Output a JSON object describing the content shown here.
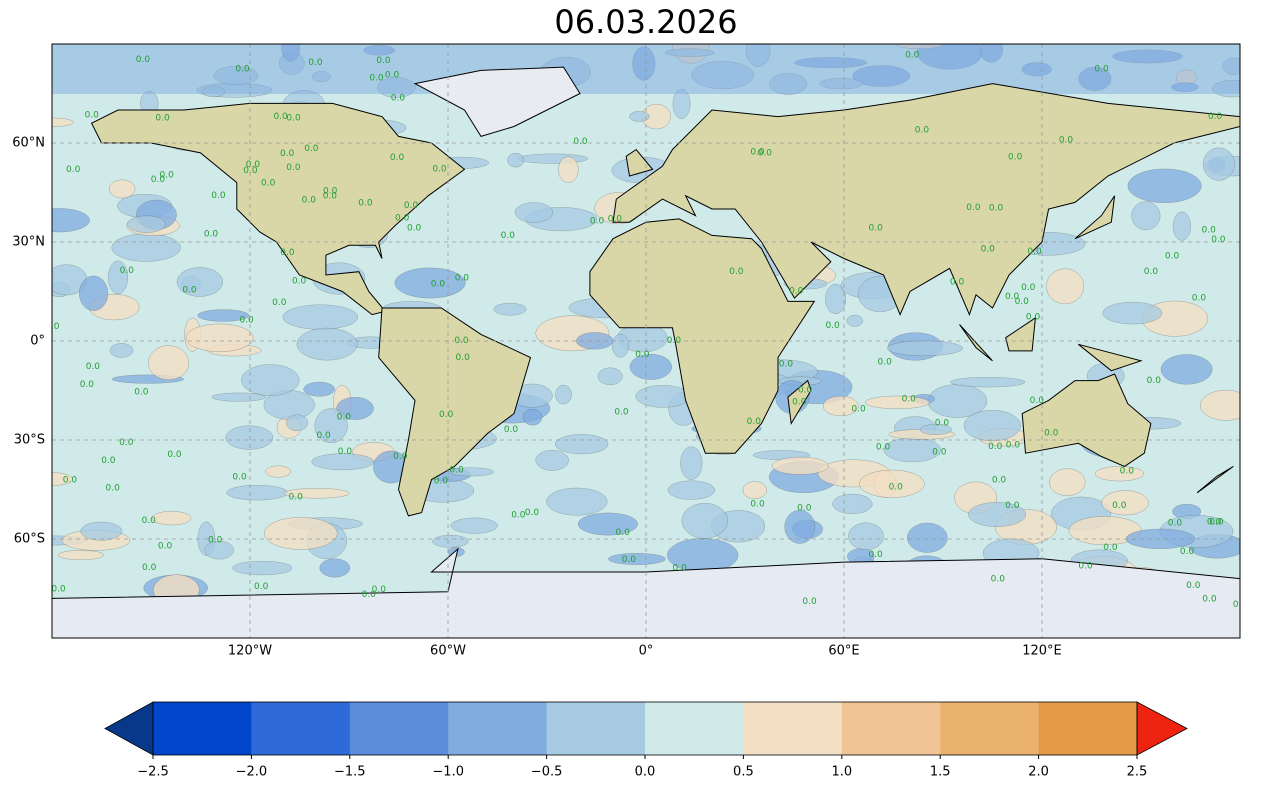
{
  "chart_data": {
    "type": "map",
    "title": "06.03.2026",
    "xlim": [
      -180,
      180
    ],
    "ylim": [
      -90,
      90
    ],
    "xticks": [
      {
        "value": -120,
        "label": "120°W"
      },
      {
        "value": -60,
        "label": "60°W"
      },
      {
        "value": 0,
        "label": "0°"
      },
      {
        "value": 60,
        "label": "60°E"
      },
      {
        "value": 120,
        "label": "120°E"
      }
    ],
    "yticks": [
      {
        "value": 60,
        "label": "60°N"
      },
      {
        "value": 30,
        "label": "30°N"
      },
      {
        "value": 0,
        "label": "0°"
      },
      {
        "value": -30,
        "label": "30°S"
      },
      {
        "value": -60,
        "label": "60°S"
      }
    ],
    "grid": true,
    "contour_label": "0.0",
    "colorbar": {
      "ticks": [
        {
          "value": -2.5,
          "label": "−2.5"
        },
        {
          "value": -2,
          "label": "−2.0"
        },
        {
          "value": -1.5,
          "label": "−1.5"
        },
        {
          "value": -1,
          "label": "−1.0"
        },
        {
          "value": -0.5,
          "label": "−0.5"
        },
        {
          "value": 0,
          "label": "0.0"
        },
        0.5,
        {
          "value": 1,
          "label": "1.0"
        },
        1.5,
        {
          "value": 2,
          "label": "2.0"
        },
        2.5
      ],
      "colors": [
        "#0047cc",
        "#2e6bd9",
        "#5a8ddc",
        "#80ace0",
        "#a6cbe3",
        "#d0eaea",
        "#f3dfc4",
        "#f0c495",
        "#eab26e",
        "#e59b45"
      ],
      "under_color": "#08388a",
      "over_color": "#ee2411"
    }
  }
}
